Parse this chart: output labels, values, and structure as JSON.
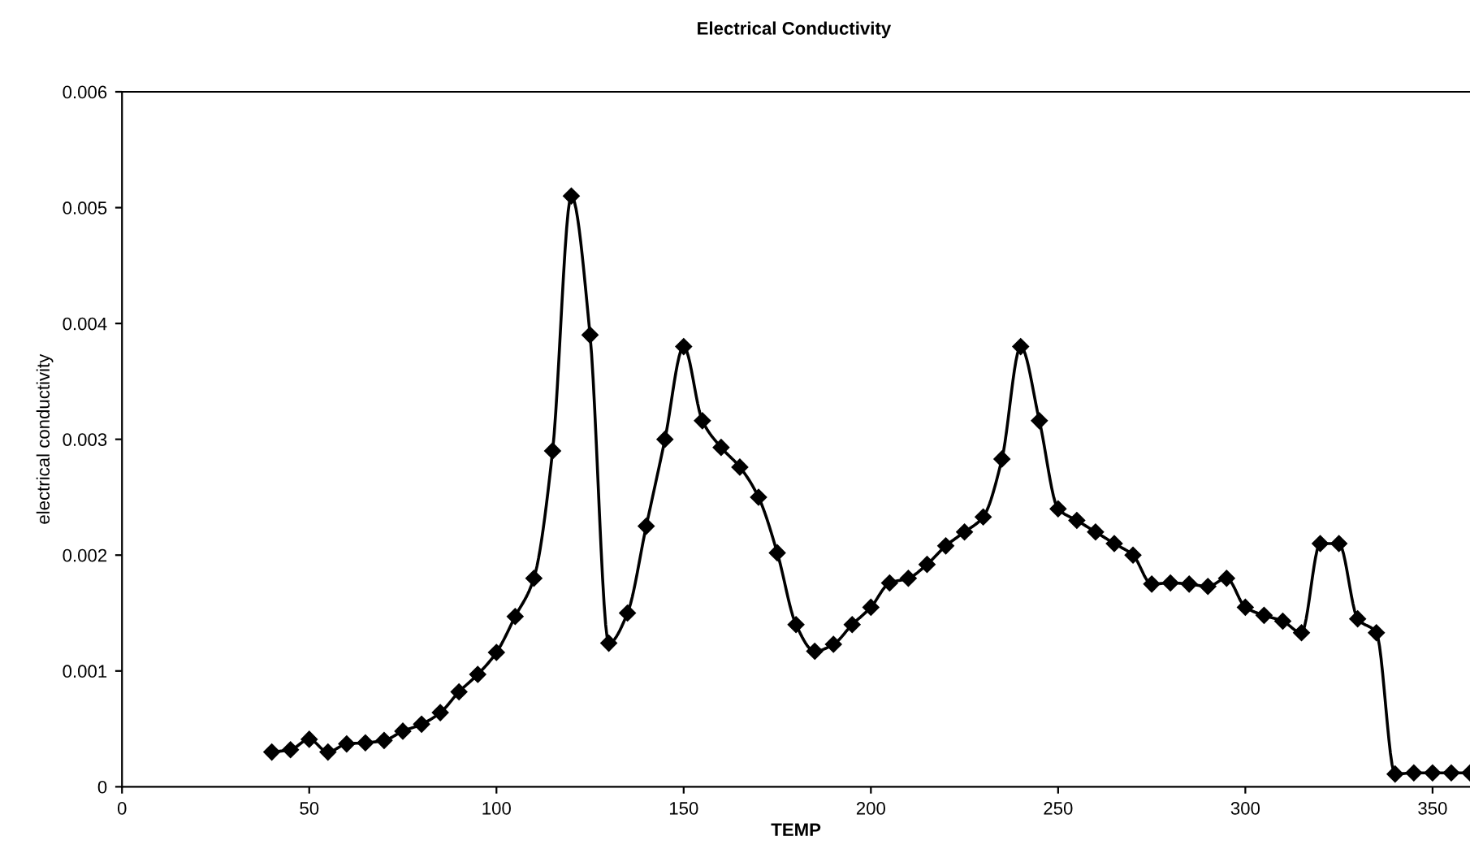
{
  "chart_data": {
    "type": "line",
    "title": "Electrical Conductivity",
    "xlabel": "TEMP",
    "ylabel": "electrical conductivity",
    "x": [
      40,
      45,
      50,
      55,
      60,
      65,
      70,
      75,
      80,
      85,
      90,
      95,
      100,
      105,
      110,
      115,
      120,
      125,
      130,
      135,
      140,
      145,
      150,
      155,
      160,
      165,
      170,
      175,
      180,
      185,
      190,
      195,
      200,
      205,
      210,
      215,
      220,
      225,
      230,
      235,
      240,
      245,
      250,
      255,
      260,
      265,
      270,
      275,
      280,
      285,
      290,
      295,
      300,
      305,
      310,
      315,
      320,
      325,
      330,
      335,
      340,
      345,
      350,
      355,
      360
    ],
    "series": [
      {
        "color": "#000000",
        "values": [
          0.0003,
          0.00032,
          0.00041,
          0.0003,
          0.00037,
          0.00038,
          0.0004,
          0.00048,
          0.00054,
          0.00064,
          0.00082,
          0.00097,
          0.00116,
          0.00147,
          0.0018,
          0.0029,
          0.0051,
          0.0039,
          0.00124,
          0.0015,
          0.00225,
          0.003,
          0.0038,
          0.00316,
          0.00293,
          0.00276,
          0.0025,
          0.00202,
          0.0014,
          0.00117,
          0.00123,
          0.0014,
          0.00155,
          0.00176,
          0.0018,
          0.00192,
          0.00208,
          0.0022,
          0.00233,
          0.00283,
          0.0038,
          0.00316,
          0.0024,
          0.0023,
          0.0022,
          0.0021,
          0.002,
          0.00175,
          0.00176,
          0.00175,
          0.00173,
          0.0018,
          0.00155,
          0.00148,
          0.00143,
          0.00133,
          0.0021,
          0.0021,
          0.00145,
          0.00133,
          0.00011,
          0.00012,
          0.00012,
          0.00012,
          0.00012
        ]
      }
    ],
    "xlim": [
      0,
      360
    ],
    "xticks": [
      0,
      50,
      100,
      150,
      200,
      250,
      300,
      350
    ],
    "ylim": [
      0,
      0.006
    ],
    "yticks": [
      0,
      0.001,
      0.002,
      0.003,
      0.004,
      0.005,
      0.006
    ],
    "grid": false,
    "legend": false,
    "marker": "diamond",
    "line_style": "solid"
  }
}
